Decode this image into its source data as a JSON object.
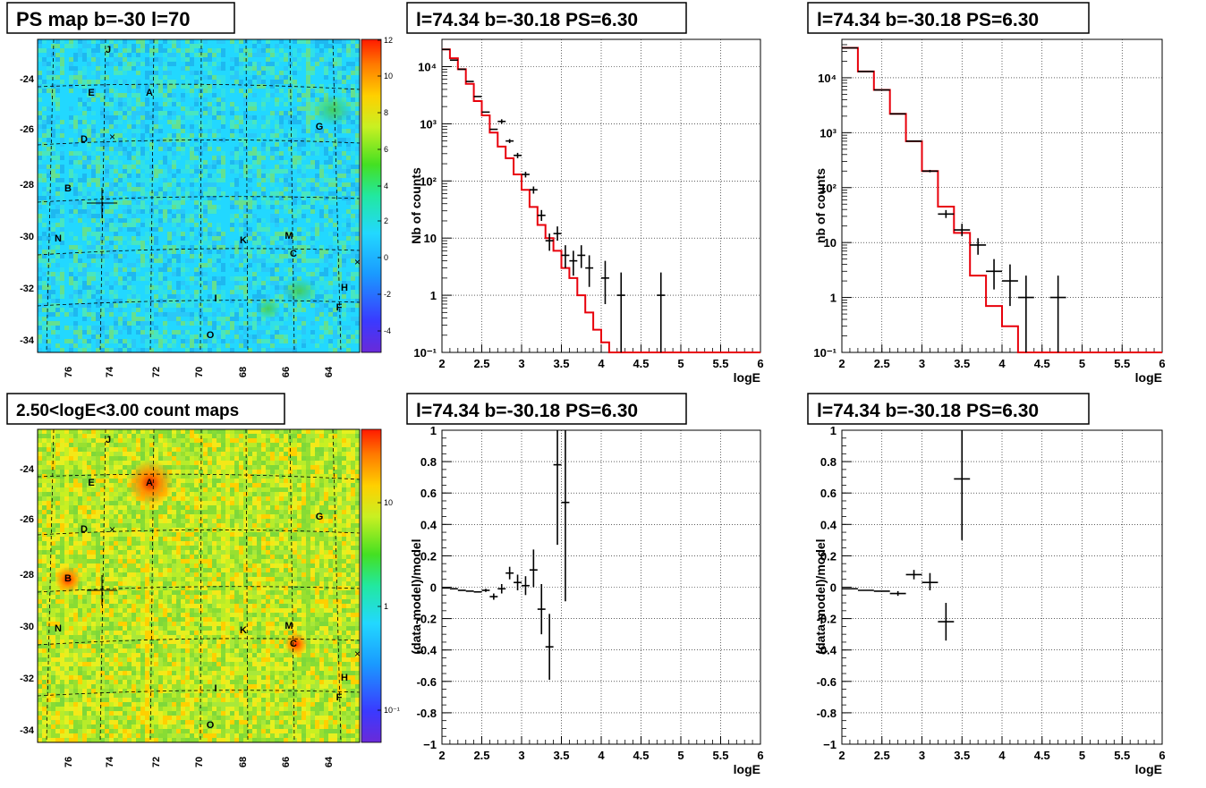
{
  "panels": {
    "ps_map": {
      "title": "PS map b=-30 l=70",
      "x_ticks": [
        "76",
        "74",
        "72",
        "70",
        "68",
        "66",
        "64"
      ],
      "y_ticks": [
        "-24",
        "-26",
        "-28",
        "-30",
        "-32",
        "-34"
      ],
      "colorbar_ticks": [
        "12",
        "10",
        "8",
        "6",
        "4",
        "2",
        "0",
        "-2",
        "-4"
      ]
    },
    "count_map": {
      "title": "2.50<logE<3.00 count maps",
      "x_ticks": [
        "76",
        "74",
        "72",
        "70",
        "68",
        "66",
        "64"
      ],
      "y_ticks": [
        "-24",
        "-26",
        "-28",
        "-30",
        "-32",
        "-34"
      ],
      "colorbar_ticks": [
        "10",
        "1",
        "10⁻¹"
      ]
    },
    "source_labels": [
      "J",
      "E",
      "A",
      "D",
      "G",
      "B",
      "N",
      "K",
      "M",
      "C",
      "H",
      "I",
      "F",
      "O"
    ]
  },
  "chart_data": [
    {
      "type": "line",
      "title": "l=74.34 b=-30.18 PS=6.30",
      "xlabel": "logE",
      "ylabel": "Nb of counts",
      "xlim": [
        2,
        6
      ],
      "ylim": [
        0.1,
        30000
      ],
      "yscale": "log",
      "grid": true,
      "x_ticks": [
        "2",
        "2.5",
        "3",
        "3.5",
        "4",
        "4.5",
        "5",
        "5.5",
        "6"
      ],
      "y_ticks": [
        "10⁴",
        "10³",
        "10²",
        "10",
        "1",
        "10⁻¹"
      ],
      "model_step": {
        "edges": [
          2,
          2.1,
          2.2,
          2.3,
          2.4,
          2.5,
          2.6,
          2.7,
          2.8,
          2.9,
          3.0,
          3.1,
          3.2,
          3.3,
          3.4,
          3.5,
          3.6,
          3.7,
          3.8,
          3.9,
          4.0,
          4.1,
          4.2,
          6.0
        ],
        "values": [
          20000,
          14000,
          9000,
          5000,
          2500,
          1400,
          700,
          400,
          250,
          130,
          70,
          35,
          17,
          10,
          6,
          3,
          2,
          1,
          0.5,
          0.25,
          0.15,
          0.1,
          0.1
        ]
      },
      "points": [
        {
          "x": 2.05,
          "y": 20000,
          "xerr": 0.05,
          "ylo": 20000,
          "yhi": 20000
        },
        {
          "x": 2.15,
          "y": 13000,
          "xerr": 0.05,
          "ylo": 13000,
          "yhi": 13000
        },
        {
          "x": 2.25,
          "y": 9000,
          "xerr": 0.05,
          "ylo": 9000,
          "yhi": 9000
        },
        {
          "x": 2.35,
          "y": 5500,
          "xerr": 0.05,
          "ylo": 5500,
          "yhi": 5500
        },
        {
          "x": 2.45,
          "y": 3000,
          "xerr": 0.05,
          "ylo": 3000,
          "yhi": 3000
        },
        {
          "x": 2.55,
          "y": 1600,
          "xerr": 0.05,
          "ylo": 1600,
          "yhi": 1600
        },
        {
          "x": 2.65,
          "y": 800,
          "xerr": 0.05,
          "ylo": 800,
          "yhi": 800
        },
        {
          "x": 2.75,
          "y": 1100,
          "xerr": 0.05,
          "ylo": 1000,
          "yhi": 1200
        },
        {
          "x": 2.85,
          "y": 500,
          "xerr": 0.05,
          "ylo": 460,
          "yhi": 540
        },
        {
          "x": 2.95,
          "y": 280,
          "xerr": 0.05,
          "ylo": 250,
          "yhi": 310
        },
        {
          "x": 3.05,
          "y": 130,
          "xerr": 0.05,
          "ylo": 115,
          "yhi": 145
        },
        {
          "x": 3.15,
          "y": 70,
          "xerr": 0.05,
          "ylo": 60,
          "yhi": 80
        },
        {
          "x": 3.25,
          "y": 25,
          "xerr": 0.05,
          "ylo": 20,
          "yhi": 31
        },
        {
          "x": 3.35,
          "y": 9,
          "xerr": 0.05,
          "ylo": 6,
          "yhi": 12
        },
        {
          "x": 3.45,
          "y": 12,
          "xerr": 0.05,
          "ylo": 9,
          "yhi": 16
        },
        {
          "x": 3.55,
          "y": 5,
          "xerr": 0.05,
          "ylo": 3,
          "yhi": 7.5
        },
        {
          "x": 3.65,
          "y": 4,
          "xerr": 0.05,
          "ylo": 2.2,
          "yhi": 6
        },
        {
          "x": 3.75,
          "y": 5,
          "xerr": 0.05,
          "ylo": 3,
          "yhi": 7.5
        },
        {
          "x": 3.85,
          "y": 3,
          "xerr": 0.05,
          "ylo": 1.4,
          "yhi": 5
        },
        {
          "x": 4.05,
          "y": 2,
          "xerr": 0.05,
          "ylo": 0.7,
          "yhi": 4
        },
        {
          "x": 4.25,
          "y": 1,
          "xerr": 0.05,
          "ylo": 0.1,
          "yhi": 2.5
        },
        {
          "x": 4.75,
          "y": 1,
          "xerr": 0.05,
          "ylo": 0.1,
          "yhi": 2.5
        }
      ]
    },
    {
      "type": "line",
      "title": "l=74.34 b=-30.18 PS=6.30",
      "xlabel": "logE",
      "ylabel": "nb of counts",
      "xlim": [
        2,
        6
      ],
      "ylim": [
        0.1,
        50000
      ],
      "yscale": "log",
      "grid": true,
      "x_ticks": [
        "2",
        "2.5",
        "3",
        "3.5",
        "4",
        "4.5",
        "5",
        "5.5",
        "6"
      ],
      "y_ticks": [
        "10⁴",
        "10³",
        "10²",
        "10",
        "1",
        "10⁻¹"
      ],
      "model_step": {
        "edges": [
          2,
          2.2,
          2.4,
          2.6,
          2.8,
          3.0,
          3.2,
          3.4,
          3.6,
          3.8,
          4.0,
          4.2,
          6.0
        ],
        "values": [
          35000,
          13000,
          6000,
          2200,
          700,
          200,
          45,
          15,
          2.5,
          0.7,
          0.3,
          0.1
        ]
      },
      "points": [
        {
          "x": 2.1,
          "y": 35000,
          "xerr": 0.1,
          "ylo": 35000,
          "yhi": 35000
        },
        {
          "x": 2.3,
          "y": 13000,
          "xerr": 0.1,
          "ylo": 13000,
          "yhi": 13000
        },
        {
          "x": 2.5,
          "y": 6000,
          "xerr": 0.1,
          "ylo": 6000,
          "yhi": 6000
        },
        {
          "x": 2.7,
          "y": 2200,
          "xerr": 0.1,
          "ylo": 2200,
          "yhi": 2200
        },
        {
          "x": 2.9,
          "y": 700,
          "xerr": 0.1,
          "ylo": 700,
          "yhi": 700
        },
        {
          "x": 3.1,
          "y": 200,
          "xerr": 0.1,
          "ylo": 190,
          "yhi": 210
        },
        {
          "x": 3.3,
          "y": 33,
          "xerr": 0.1,
          "ylo": 28,
          "yhi": 39
        },
        {
          "x": 3.5,
          "y": 17,
          "xerr": 0.1,
          "ylo": 13,
          "yhi": 22
        },
        {
          "x": 3.7,
          "y": 9,
          "xerr": 0.1,
          "ylo": 6,
          "yhi": 12
        },
        {
          "x": 3.9,
          "y": 3,
          "xerr": 0.1,
          "ylo": 1.4,
          "yhi": 5
        },
        {
          "x": 4.1,
          "y": 2,
          "xerr": 0.1,
          "ylo": 0.7,
          "yhi": 4
        },
        {
          "x": 4.3,
          "y": 1,
          "xerr": 0.1,
          "ylo": 0.1,
          "yhi": 2.5
        },
        {
          "x": 4.7,
          "y": 1,
          "xerr": 0.1,
          "ylo": 0.1,
          "yhi": 2.5
        }
      ]
    },
    {
      "type": "scatter",
      "title": "l=74.34 b=-30.18 PS=6.30",
      "xlabel": "logE",
      "ylabel": "(data-model)/model",
      "xlim": [
        2,
        6
      ],
      "ylim": [
        -1,
        1
      ],
      "grid": true,
      "x_ticks": [
        "2",
        "2.5",
        "3",
        "3.5",
        "4",
        "4.5",
        "5",
        "5.5",
        "6"
      ],
      "y_ticks": [
        "1",
        "0.8",
        "0.6",
        "0.4",
        "0.2",
        "0",
        "-0.2",
        "-0.4",
        "-0.6",
        "-0.8",
        "−1"
      ],
      "points": [
        {
          "x": 2.05,
          "y": -0.005,
          "xerr": 0.05,
          "ylo": -0.005,
          "yhi": -0.005
        },
        {
          "x": 2.15,
          "y": -0.01,
          "xerr": 0.05,
          "ylo": -0.01,
          "yhi": -0.01
        },
        {
          "x": 2.25,
          "y": -0.02,
          "xerr": 0.05,
          "ylo": -0.02,
          "yhi": -0.02
        },
        {
          "x": 2.35,
          "y": -0.025,
          "xerr": 0.05,
          "ylo": -0.025,
          "yhi": -0.025
        },
        {
          "x": 2.45,
          "y": -0.03,
          "xerr": 0.05,
          "ylo": -0.03,
          "yhi": -0.03
        },
        {
          "x": 2.55,
          "y": -0.02,
          "xerr": 0.05,
          "ylo": -0.03,
          "yhi": -0.01
        },
        {
          "x": 2.65,
          "y": -0.06,
          "xerr": 0.05,
          "ylo": -0.08,
          "yhi": -0.04
        },
        {
          "x": 2.75,
          "y": -0.01,
          "xerr": 0.05,
          "ylo": -0.04,
          "yhi": 0.02
        },
        {
          "x": 2.85,
          "y": 0.09,
          "xerr": 0.05,
          "ylo": 0.05,
          "yhi": 0.13
        },
        {
          "x": 2.95,
          "y": 0.03,
          "xerr": 0.05,
          "ylo": -0.02,
          "yhi": 0.08
        },
        {
          "x": 3.05,
          "y": 0.01,
          "xerr": 0.05,
          "ylo": -0.05,
          "yhi": 0.07
        },
        {
          "x": 3.15,
          "y": 0.11,
          "xerr": 0.05,
          "ylo": 0.0,
          "yhi": 0.24
        },
        {
          "x": 3.25,
          "y": -0.14,
          "xerr": 0.05,
          "ylo": -0.3,
          "yhi": 0.02
        },
        {
          "x": 3.35,
          "y": -0.38,
          "xerr": 0.05,
          "ylo": -0.59,
          "yhi": -0.17
        },
        {
          "x": 3.45,
          "y": 0.78,
          "xerr": 0.05,
          "ylo": 0.27,
          "yhi": 1.0
        },
        {
          "x": 3.55,
          "y": 0.54,
          "xerr": 0.05,
          "ylo": -0.09,
          "yhi": 1.0
        }
      ]
    },
    {
      "type": "scatter",
      "title": "l=74.34 b=-30.18 PS=6.30",
      "xlabel": "logE",
      "ylabel": "(data-model)/model",
      "xlim": [
        2,
        6
      ],
      "ylim": [
        -1,
        1
      ],
      "grid": true,
      "x_ticks": [
        "2",
        "2.5",
        "3",
        "3.5",
        "4",
        "4.5",
        "5",
        "5.5",
        "6"
      ],
      "y_ticks": [
        "1",
        "0.8",
        "0.6",
        "0.4",
        "0.2",
        "0",
        "-0.2",
        "-0.4",
        "-0.6",
        "-0.8",
        "−1"
      ],
      "points": [
        {
          "x": 2.1,
          "y": -0.01,
          "xerr": 0.1,
          "ylo": -0.01,
          "yhi": -0.01
        },
        {
          "x": 2.3,
          "y": -0.02,
          "xerr": 0.1,
          "ylo": -0.02,
          "yhi": -0.02
        },
        {
          "x": 2.5,
          "y": -0.025,
          "xerr": 0.1,
          "ylo": -0.025,
          "yhi": -0.025
        },
        {
          "x": 2.7,
          "y": -0.04,
          "xerr": 0.1,
          "ylo": -0.055,
          "yhi": -0.025
        },
        {
          "x": 2.9,
          "y": 0.08,
          "xerr": 0.1,
          "ylo": 0.05,
          "yhi": 0.11
        },
        {
          "x": 3.1,
          "y": 0.03,
          "xerr": 0.1,
          "ylo": -0.02,
          "yhi": 0.09
        },
        {
          "x": 3.3,
          "y": -0.22,
          "xerr": 0.1,
          "ylo": -0.34,
          "yhi": -0.1
        },
        {
          "x": 3.5,
          "y": 0.69,
          "xerr": 0.1,
          "ylo": 0.3,
          "yhi": 1.0
        }
      ]
    }
  ]
}
